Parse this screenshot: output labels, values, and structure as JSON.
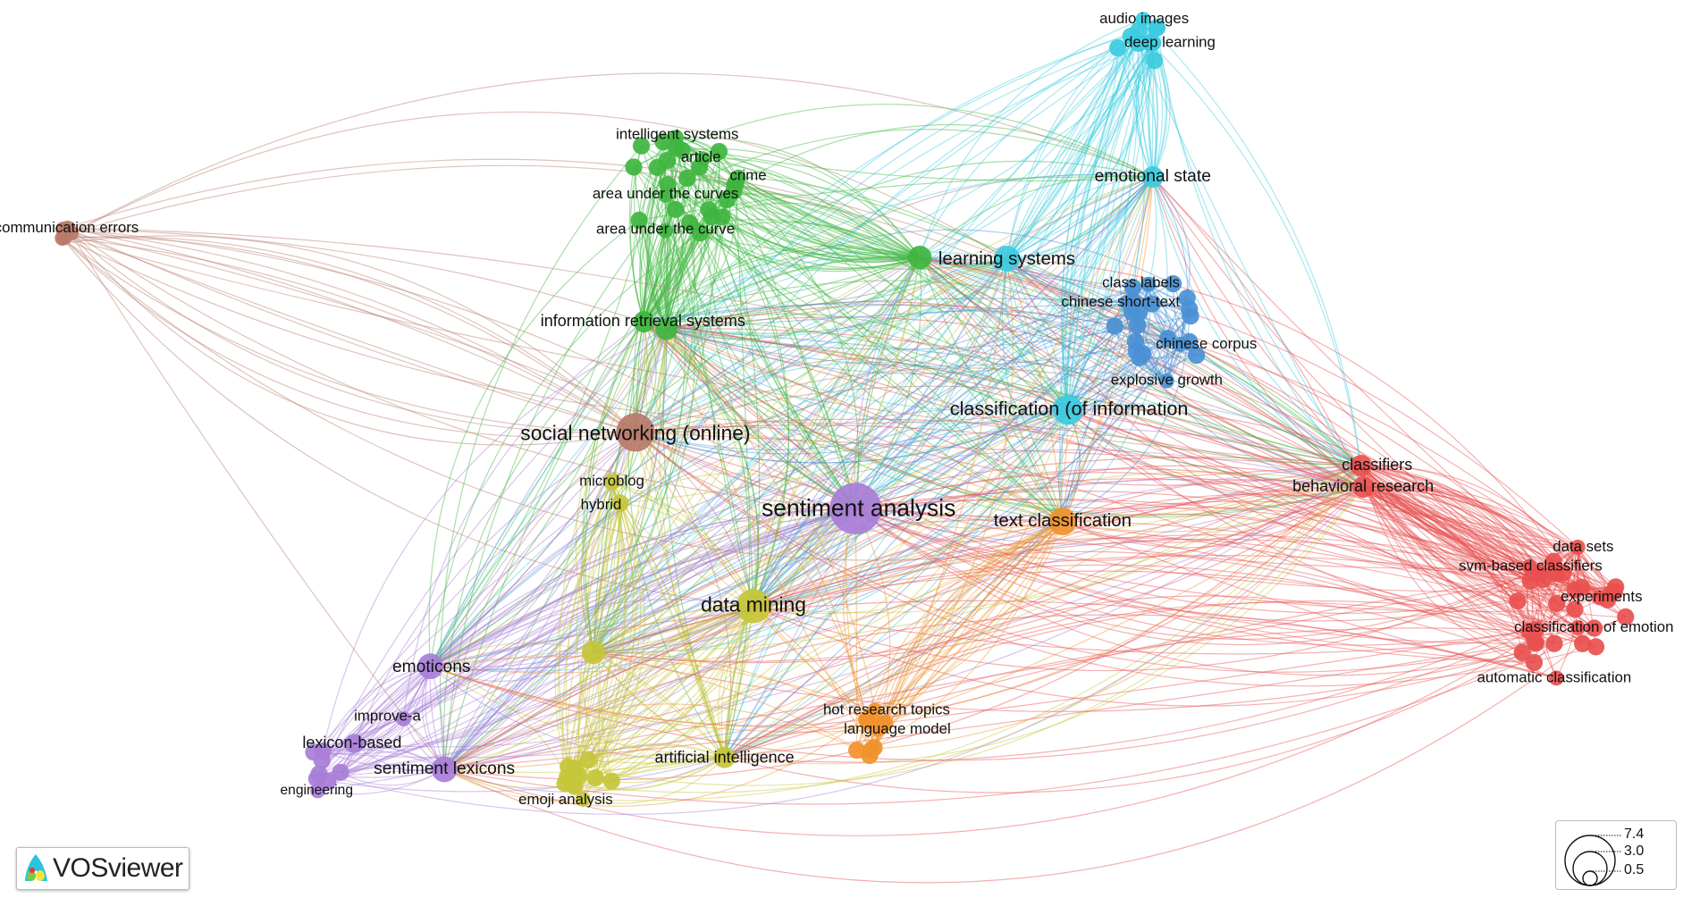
{
  "clusters": {
    "red": "#e8504f",
    "green": "#3fb53f",
    "blue": "#4a90d4",
    "yellow": "#c6c63a",
    "purple": "#a87ed8",
    "cyan": "#3ccbe0",
    "orange": "#f0922e",
    "brown": "#b87a6a"
  },
  "labels": {
    "sentiment_analysis": "sentiment analysis",
    "social_networking": "social networking (online)",
    "classification_info": "classification (of information",
    "data_mining": "data mining",
    "text_classification": "text classification",
    "learning_systems": "learning systems",
    "emotional_state": "emotional state",
    "information_retrieval": "information retrieval systems",
    "classifiers": "classifiers",
    "behavioral_research": "behavioral research",
    "emoticons": "emoticons",
    "sentiment_lexicons": "sentiment lexicons",
    "lexicon_based": "lexicon-based",
    "improve_a": "improve-a",
    "engineering": "engineering",
    "microblog": "microblog",
    "hybrid": "hybrid",
    "artificial_intelligence": "artificial intelligence",
    "emoji_analysis": "emoji analysis",
    "hot_research_topics": "hot research topics",
    "language_model": "language model",
    "data_sets": "data sets",
    "svm_based": "svm-based classifiers",
    "experiments": "experiments",
    "classification_emotion": "classification of emotion",
    "automatic_classification": "automatic classification",
    "class_labels": "class labels",
    "chinese_short_text": "chinese short-text",
    "chinese_corpus": "chinese corpus",
    "explosive_growth": "explosive growth",
    "audio_images": "audio images",
    "deep_learning": "deep learning",
    "intelligent_systems": "intelligent systems",
    "article": "article",
    "crime": "crime",
    "auc_curves": "area under the curves",
    "auc_curve": "area under the curve",
    "communication_errors": "communication errors"
  },
  "legend": {
    "values": [
      "7.4",
      "3.0",
      "0.5"
    ]
  },
  "logo": {
    "text": "VOSviewer"
  }
}
